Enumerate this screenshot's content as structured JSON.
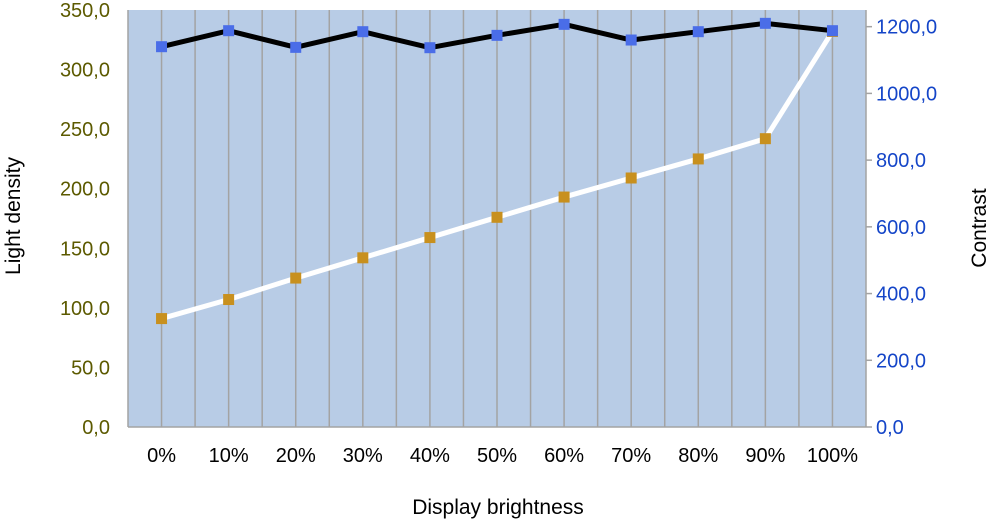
{
  "chart_data": {
    "type": "line",
    "xlabel": "Display brightness",
    "ylabel": "Light density",
    "y2label": "Contrast",
    "categories": [
      "0%",
      "10%",
      "20%",
      "30%",
      "40%",
      "50%",
      "60%",
      "70%",
      "80%",
      "90%",
      "100%"
    ],
    "ylim": [
      0,
      350
    ],
    "y2lim": [
      0,
      1250
    ],
    "yticks": [
      "0,0",
      "50,0",
      "100,0",
      "150,0",
      "200,0",
      "250,0",
      "300,0",
      "350,0"
    ],
    "y2ticks": [
      "0,0",
      "200,0",
      "400,0",
      "600,0",
      "800,0",
      "1000,0",
      "1200,0"
    ],
    "grid": true,
    "series": [
      {
        "axis": "left",
        "values": [
          91,
          107,
          125,
          142,
          159,
          176,
          193,
          209,
          225,
          242,
          332
        ],
        "line_color": "#ffffff",
        "marker_color": "#c8901e"
      },
      {
        "axis": "right",
        "values": [
          1140,
          1188,
          1138,
          1185,
          1137,
          1174,
          1207,
          1160,
          1185,
          1210,
          1188
        ],
        "line_color": "#000000",
        "marker_color": "#4a6de8"
      }
    ],
    "colors": {
      "plot_bg": "#b8cce6",
      "grid": "#a3a3a3",
      "left_tick": "#5c5a00",
      "right_tick": "#1445c8"
    }
  }
}
